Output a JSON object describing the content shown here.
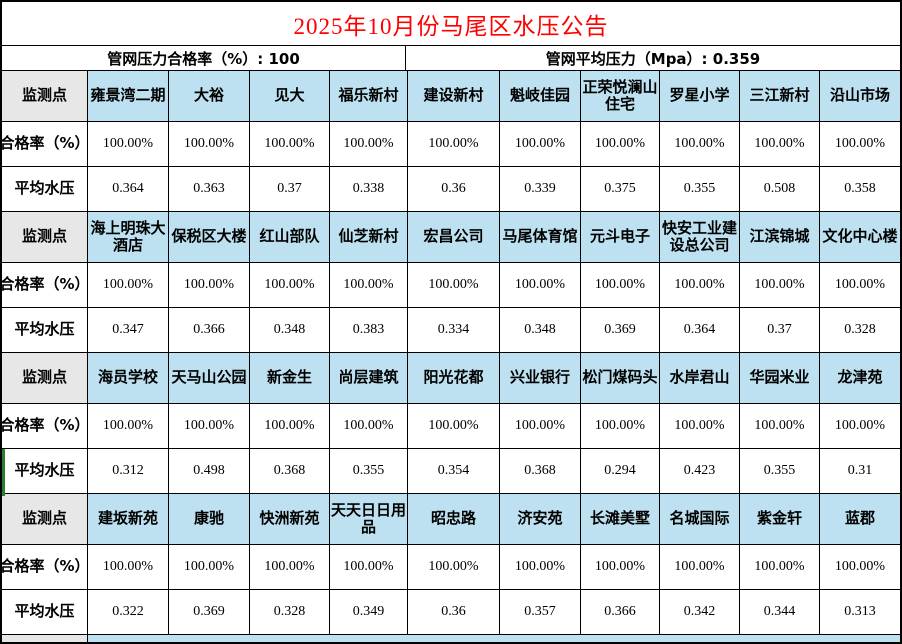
{
  "title": "2025年10月份马尾区水压公告",
  "summary": {
    "left": "管网压力合格率（%）: 100",
    "right": "管网平均压力（Mpa）: 0.359"
  },
  "row_labels": {
    "station": "监测点",
    "pass_rate": "合格率（%）",
    "avg_pressure": "平均水压"
  },
  "blocks": [
    {
      "stations": [
        "雍景湾二期",
        "大裕",
        "见大",
        "福乐新村",
        "建设新村",
        "魁岐佳园",
        "正荣悦澜山住宅",
        "罗星小学",
        "三江新村",
        "沿山市场"
      ],
      "pass_rates": [
        "100.00%",
        "100.00%",
        "100.00%",
        "100.00%",
        "100.00%",
        "100.00%",
        "100.00%",
        "100.00%",
        "100.00%",
        "100.00%"
      ],
      "pressures": [
        "0.364",
        "0.363",
        "0.37",
        "0.338",
        "0.36",
        "0.339",
        "0.375",
        "0.355",
        "0.508",
        "0.358"
      ]
    },
    {
      "stations": [
        "海上明珠大酒店",
        "保税区大楼",
        "红山部队",
        "仙芝新村",
        "宏昌公司",
        "马尾体育馆",
        "元斗电子",
        "快安工业建设总公司",
        "江滨锦城",
        "文化中心楼"
      ],
      "pass_rates": [
        "100.00%",
        "100.00%",
        "100.00%",
        "100.00%",
        "100.00%",
        "100.00%",
        "100.00%",
        "100.00%",
        "100.00%",
        "100.00%"
      ],
      "pressures": [
        "0.347",
        "0.366",
        "0.348",
        "0.383",
        "0.334",
        "0.348",
        "0.369",
        "0.364",
        "0.37",
        "0.328"
      ]
    },
    {
      "stations": [
        "海员学校",
        "天马山公园",
        "新金生",
        "尚层建筑",
        "阳光花都",
        "兴业银行",
        "松门煤码头",
        "水岸君山",
        "华园米业",
        "龙津苑"
      ],
      "pass_rates": [
        "100.00%",
        "100.00%",
        "100.00%",
        "100.00%",
        "100.00%",
        "100.00%",
        "100.00%",
        "100.00%",
        "100.00%",
        "100.00%"
      ],
      "pressures": [
        "0.312",
        "0.498",
        "0.368",
        "0.355",
        "0.354",
        "0.368",
        "0.294",
        "0.423",
        "0.355",
        "0.31"
      ]
    },
    {
      "stations": [
        "建坂新苑",
        "康驰",
        "快洲新苑",
        "天天日日用品",
        "昭忠路",
        "济安苑",
        "长滩美墅",
        "名城国际",
        "紫金轩",
        "蓝郡"
      ],
      "pass_rates": [
        "100.00%",
        "100.00%",
        "100.00%",
        "100.00%",
        "100.00%",
        "100.00%",
        "100.00%",
        "100.00%",
        "100.00%",
        "100.00%"
      ],
      "pressures": [
        "0.322",
        "0.369",
        "0.328",
        "0.349",
        "0.36",
        "0.357",
        "0.366",
        "0.342",
        "0.344",
        "0.313"
      ]
    }
  ],
  "colors": {
    "title_red": "#ff0000",
    "station_bg": "#bde1f0",
    "label_bg": "#e7e7e7",
    "border": "#000000",
    "accent_green": "#2e7d32"
  }
}
